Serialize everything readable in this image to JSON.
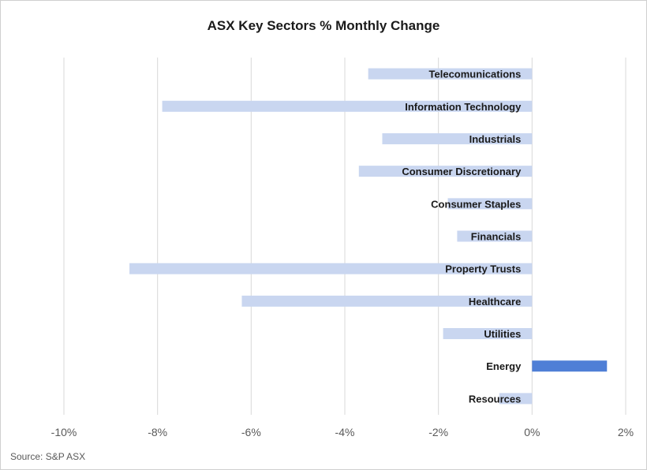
{
  "chart_data": {
    "type": "bar",
    "orientation": "horizontal",
    "title": "ASX Key Sectors % Monthly Change",
    "source": "Source: S&P ASX",
    "categories": [
      "Telecomunications",
      "Information Technology",
      "Industrials",
      "Consumer Discretionary",
      "Consumer Staples",
      "Financials",
      "Property Trusts",
      "Healthcare",
      "Utilities",
      "Energy",
      "Resources"
    ],
    "values": [
      -3.5,
      -7.9,
      -3.2,
      -3.7,
      -1.8,
      -1.6,
      -8.6,
      -6.2,
      -1.9,
      1.6,
      -0.7
    ],
    "xlim": [
      -10,
      2
    ],
    "xticks": [
      -10,
      -8,
      -6,
      -4,
      -2,
      0,
      2
    ],
    "tick_format": "percent",
    "grid": "vertical",
    "colors": {
      "negative": "#c9d6f0",
      "positive": "#4f7fd6",
      "grid": "#d9d9d9",
      "tick_text": "#595959",
      "label_text": "#1a1a1a"
    }
  }
}
